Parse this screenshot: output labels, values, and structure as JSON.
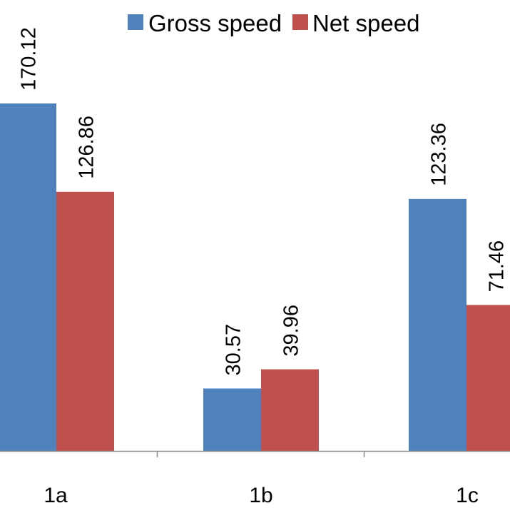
{
  "chart_data": {
    "type": "bar",
    "categories": [
      "1a",
      "1b",
      "1c"
    ],
    "series": [
      {
        "name": "Gross speed",
        "values": [
          170.12,
          30.57,
          123.36
        ],
        "color": "#4F81BD"
      },
      {
        "name": "Net speed",
        "values": [
          126.86,
          39.96,
          71.46
        ],
        "color": "#C0504D"
      }
    ],
    "data_labels": [
      [
        "170.12",
        "30.57",
        "123.36"
      ],
      [
        "126.86",
        "39.96",
        "71.46"
      ]
    ],
    "ylim": [
      0,
      170.12
    ],
    "grid": false,
    "legend": "top",
    "axis_color": "#8C8C8C"
  }
}
